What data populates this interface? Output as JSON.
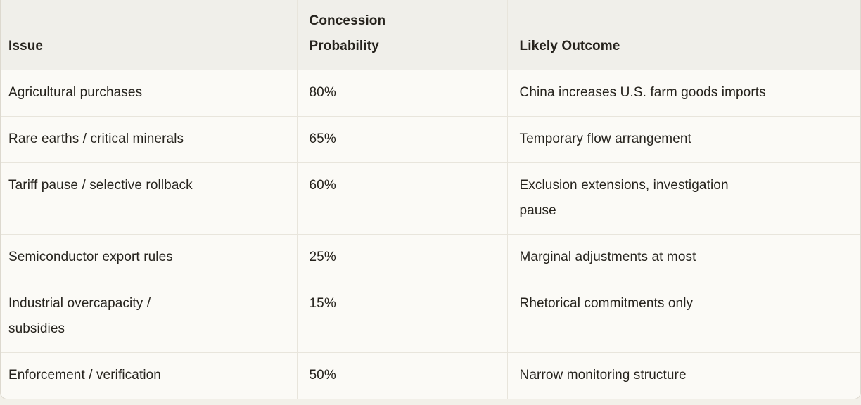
{
  "colors": {
    "page-bg": "#f2f0e9",
    "row-bg": "#fbfaf6",
    "header-bg": "#f0efea",
    "divider": "#e8e5dc",
    "outer-border": "#ddd9cf",
    "text": "#26231d"
  },
  "table": {
    "columns": [
      {
        "label": "Issue"
      },
      {
        "label": "Concession\nProbability"
      },
      {
        "label": "Likely Outcome"
      }
    ],
    "rows": [
      {
        "issue": "Agricultural purchases",
        "probability": "80%",
        "outcome": "China increases U.S. farm goods imports"
      },
      {
        "issue": "Rare earths / critical minerals",
        "probability": "65%",
        "outcome": "Temporary flow arrangement"
      },
      {
        "issue": "Tariff pause / selective rollback",
        "probability": "60%",
        "outcome": "Exclusion extensions, investigation\npause"
      },
      {
        "issue": "Semiconductor export rules",
        "probability": "25%",
        "outcome": "Marginal adjustments at most"
      },
      {
        "issue": "Industrial overcapacity /\nsubsidies",
        "probability": "15%",
        "outcome": "Rhetorical commitments only"
      },
      {
        "issue": "Enforcement / verification",
        "probability": "50%",
        "outcome": "Narrow monitoring structure"
      }
    ]
  }
}
